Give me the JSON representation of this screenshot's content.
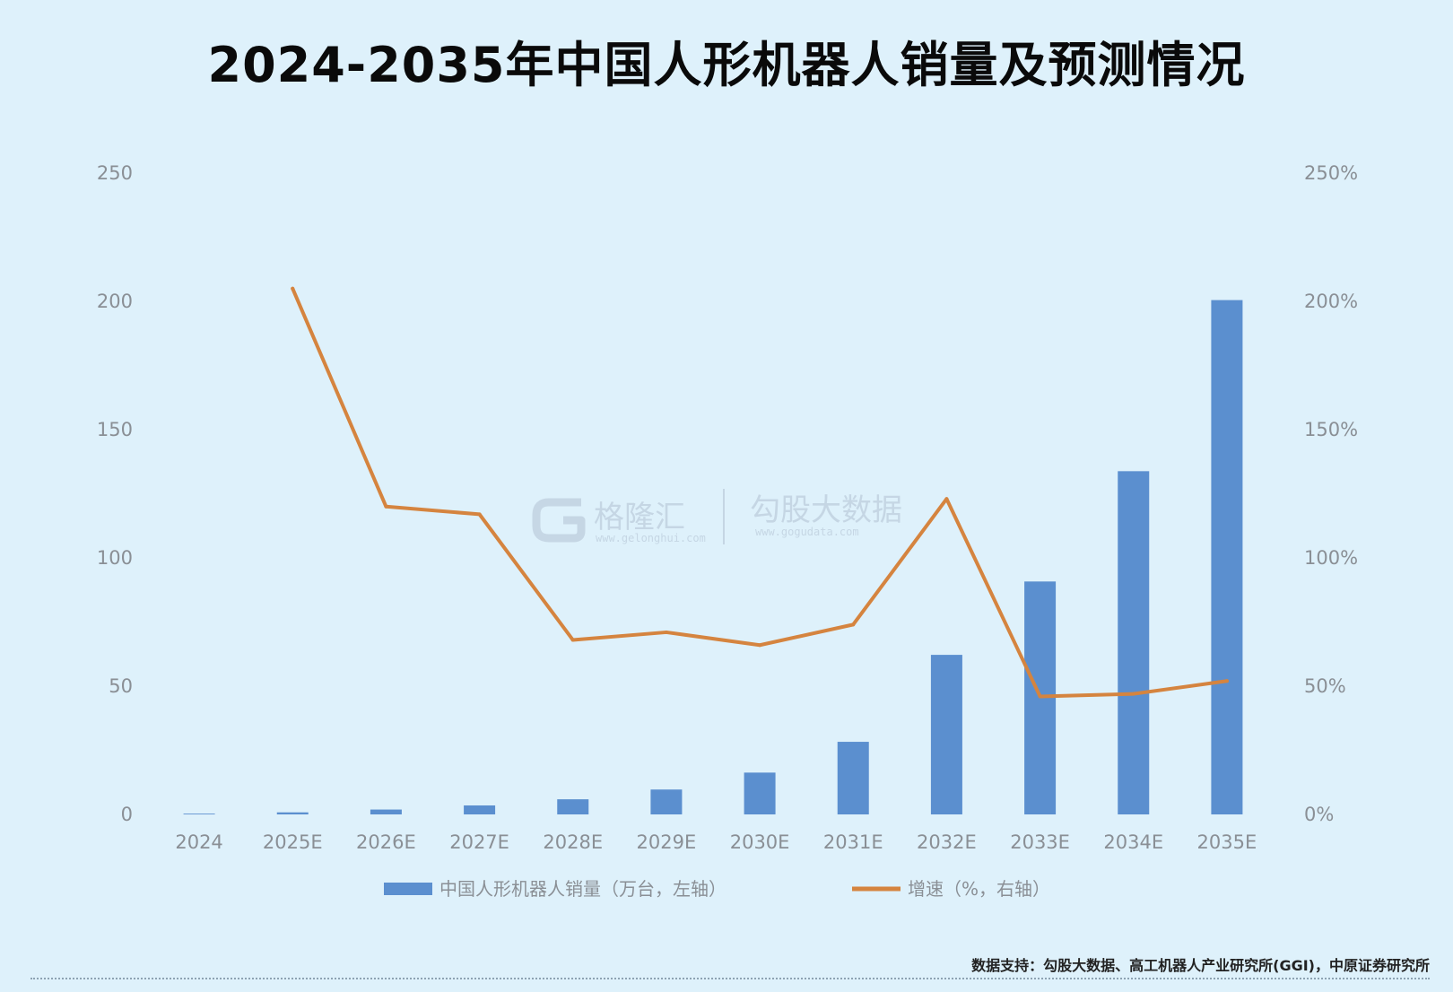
{
  "chart_data": {
    "type": "bar+line",
    "title": "2024-2035年中国人形机器人销量及预测情况",
    "categories": [
      "2024",
      "2025E",
      "2026E",
      "2027E",
      "2028E",
      "2029E",
      "2030E",
      "2031E",
      "2032E",
      "2033E",
      "2034E",
      "2035E"
    ],
    "series": [
      {
        "name": "中国人形机器人销量（万台，左轴）",
        "kind": "bar",
        "axis": "left",
        "color": "#5b8fcf",
        "values": [
          0.3,
          0.8,
          1.9,
          3.5,
          5.9,
          9.7,
          16.3,
          28.3,
          62.2,
          90.8,
          133.8,
          200.5
        ]
      },
      {
        "name": "增速（%，右轴）",
        "kind": "line",
        "axis": "right",
        "color": "#d5843f",
        "values": [
          null,
          205,
          120,
          117,
          68,
          71,
          66,
          74,
          123,
          46,
          47,
          52
        ]
      }
    ],
    "y_left": {
      "min": 0,
      "max": 250,
      "ticks": [
        "0",
        "50",
        "100",
        "150",
        "200",
        "250"
      ]
    },
    "y_right": {
      "min": 0,
      "max": 250,
      "ticks": [
        "0%",
        "50%",
        "100%",
        "150%",
        "200%",
        "250%"
      ]
    },
    "grid": false,
    "legend_position": "bottom"
  },
  "watermark": {
    "brand_left": "格隆汇",
    "brand_left_url": "www.gelonghui.com",
    "brand_right": "勾股大数据",
    "brand_right_url": "www.gogudata.com"
  },
  "source_note": "数据支持：勾股大数据、高工机器人产业研究所(GGI)，中原证券研究所"
}
